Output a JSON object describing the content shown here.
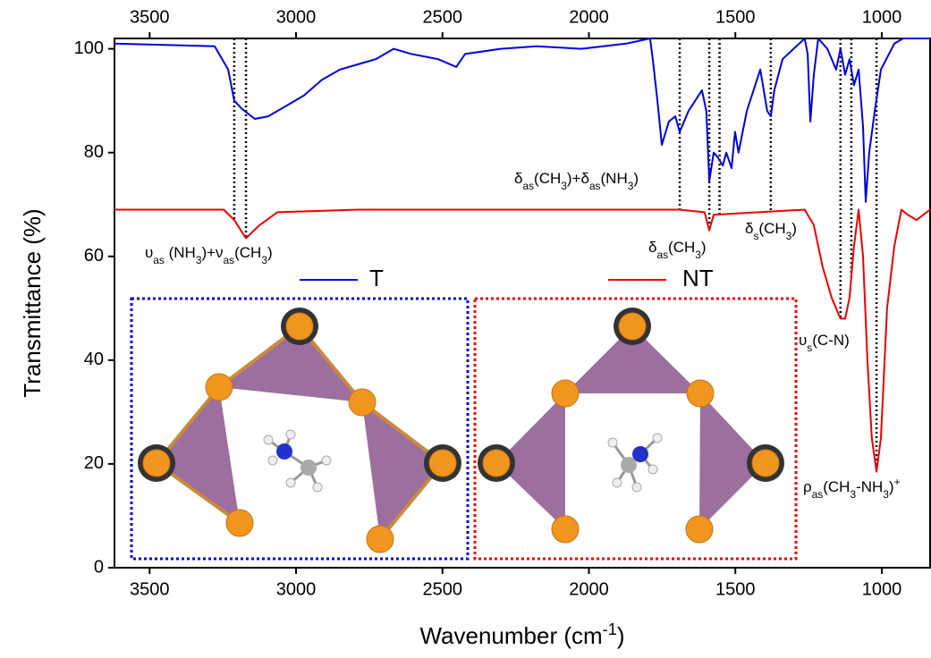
{
  "chart_data": {
    "type": "line",
    "x_label": [
      {
        "text": "Wavenumber (cm"
      },
      {
        "text": "-1",
        "sup": true
      },
      {
        "text": ")"
      }
    ],
    "y_label": "Transmittance (%)",
    "xlim": [
      3620,
      835
    ],
    "ylim": [
      0,
      102
    ],
    "xticks": [
      3500,
      3000,
      2500,
      2000,
      1500,
      1000
    ],
    "yticks": [
      0,
      20,
      40,
      60,
      80,
      100
    ],
    "series": [
      {
        "name": "T",
        "color": "#0000dd",
        "x": [
          3620,
          3278,
          3232,
          3211,
          3186,
          3141,
          3095,
          3034,
          2973,
          2912,
          2850,
          2789,
          2728,
          2667,
          2606,
          2515,
          2453,
          2423,
          2301,
          2179,
          2026,
          1873,
          1791,
          1782,
          1766,
          1751,
          1727,
          1705,
          1690,
          1660,
          1614,
          1599,
          1589,
          1574,
          1559,
          1543,
          1531,
          1513,
          1501,
          1489,
          1461,
          1415,
          1391,
          1379,
          1367,
          1339,
          1263,
          1253,
          1244,
          1232,
          1217,
          1186,
          1156,
          1141,
          1125,
          1110,
          1095,
          1079,
          1064,
          1055,
          1043,
          1024,
          1003,
          957,
          927,
          835
        ],
        "values": [
          101,
          100.5,
          96,
          90,
          88.5,
          86.5,
          87,
          89,
          91,
          94,
          96,
          97,
          98,
          100,
          99,
          98,
          96.5,
          99,
          100,
          100.5,
          100,
          101,
          102,
          98,
          90,
          81.5,
          86,
          87,
          84,
          88,
          92,
          88,
          74.5,
          80,
          79,
          77.5,
          80,
          77,
          84,
          80,
          88,
          96,
          88,
          87,
          92,
          98,
          102,
          99,
          86,
          95,
          102,
          100,
          96,
          100,
          95,
          98,
          93,
          96,
          85,
          70.5,
          80,
          88,
          96,
          101,
          102,
          102
        ]
      },
      {
        "name": "NT",
        "color": "#ee0000",
        "x": [
          3620,
          3247,
          3211,
          3171,
          3125,
          3064,
          2789,
          2179,
          1690,
          1605,
          1589,
          1574,
          1263,
          1232,
          1202,
          1171,
          1141,
          1125,
          1110,
          1095,
          1079,
          1064,
          1049,
          1034,
          1018,
          1003,
          982,
          957,
          933,
          911,
          881,
          835
        ],
        "values": [
          69,
          69,
          67,
          63.5,
          66,
          68.5,
          69,
          69,
          69,
          68.5,
          65,
          68,
          69,
          66,
          58,
          52,
          48,
          48,
          52,
          62,
          69,
          60,
          40,
          25,
          18.5,
          25,
          50,
          62,
          69,
          68,
          67,
          69
        ]
      }
    ],
    "vlines": [
      3211,
      3171,
      1690,
      1589,
      1554,
      1379,
      1141,
      1104,
      1018
    ],
    "annotations": [
      [
        {
          "text": "υ"
        },
        {
          "text": "as",
          "sub": true
        },
        {
          "text": " (NH"
        },
        {
          "text": "3",
          "sub": true
        },
        {
          "text": ")+ν"
        },
        {
          "text": "as",
          "sub": true
        },
        {
          "text": "(CH"
        },
        {
          "text": "3",
          "sub": true
        },
        {
          "text": ")"
        }
      ],
      [
        {
          "text": "δ"
        },
        {
          "text": "as",
          "sub": true
        },
        {
          "text": "(CH"
        },
        {
          "text": "3",
          "sub": true
        },
        {
          "text": ")+δ"
        },
        {
          "text": "as",
          "sub": true
        },
        {
          "text": "(NH"
        },
        {
          "text": "3",
          "sub": true
        },
        {
          "text": ")"
        }
      ],
      [
        {
          "text": "δ"
        },
        {
          "text": "as",
          "sub": true
        },
        {
          "text": "(CH"
        },
        {
          "text": "3",
          "sub": true
        },
        {
          "text": ")"
        }
      ],
      [
        {
          "text": "δ"
        },
        {
          "text": "s",
          "sub": true
        },
        {
          "text": "(CH"
        },
        {
          "text": "3",
          "sub": true
        },
        {
          "text": ")"
        }
      ],
      [
        {
          "text": "υ"
        },
        {
          "text": "s",
          "sub": true
        },
        {
          "text": "(C-N)"
        }
      ],
      [
        {
          "text": "ρ"
        },
        {
          "text": "as",
          "sub": true
        },
        {
          "text": "(CH"
        },
        {
          "text": "3",
          "sub": true
        },
        {
          "text": "-NH"
        },
        {
          "text": "3",
          "sub": true
        },
        {
          "text": ")"
        },
        {
          "text": "+",
          "sup": true
        }
      ]
    ]
  }
}
